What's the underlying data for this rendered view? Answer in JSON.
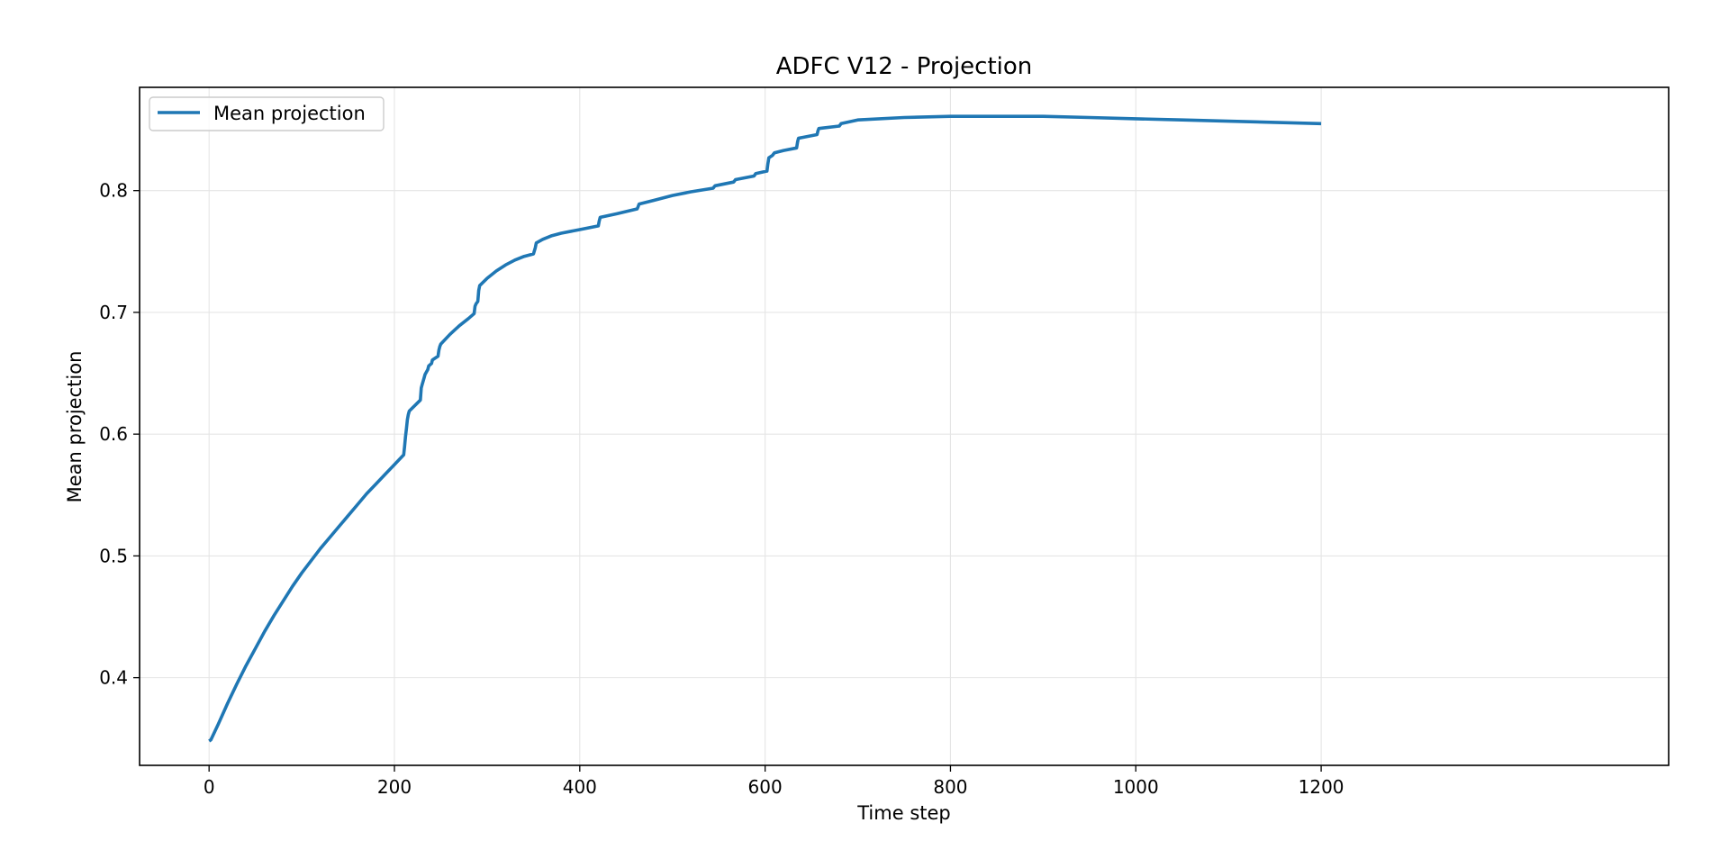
{
  "chart_data": {
    "type": "line",
    "title": "ADFC V12 - Projection",
    "xlabel": "Time step",
    "ylabel": "Mean projection",
    "xlim": [
      -75,
      1575
    ],
    "ylim": [
      0.328,
      0.8848
    ],
    "xticks": [
      0,
      200,
      400,
      600,
      800,
      1000,
      1200
    ],
    "xtick_labels": [
      "0",
      "200",
      "400",
      "600",
      "800",
      "1000",
      "1200"
    ],
    "yticks": [
      0.4,
      0.5,
      0.6,
      0.7,
      0.8
    ],
    "ytick_labels": [
      "0.4",
      "0.5",
      "0.6",
      "0.7",
      "0.8"
    ],
    "grid": true,
    "legend_position": "upper left",
    "series": [
      {
        "name": "Mean projection",
        "color": "#1f77b4",
        "x": [
          0,
          2,
          10,
          20,
          30,
          40,
          50,
          60,
          70,
          80,
          90,
          100,
          110,
          120,
          130,
          140,
          150,
          160,
          170,
          180,
          190,
          200,
          210,
          211,
          212,
          213,
          214,
          215,
          216,
          228,
          229,
          230,
          232,
          233,
          236,
          237,
          240,
          241,
          247,
          248,
          249,
          250,
          260,
          270,
          280,
          286,
          287,
          288,
          290,
          291,
          292,
          300,
          310,
          320,
          330,
          340,
          350,
          352,
          353,
          360,
          370,
          380,
          400,
          420,
          421,
          422,
          440,
          462,
          463,
          464,
          480,
          500,
          520,
          544,
          545,
          546,
          566,
          567,
          568,
          588,
          589,
          590,
          602,
          603,
          604,
          608,
          609,
          610,
          620,
          634,
          635,
          636,
          656,
          657,
          658,
          680,
          681,
          682,
          700,
          750,
          800,
          850,
          900,
          950,
          1000,
          1050,
          1100,
          1150,
          1200
        ],
        "y": [
          0.348,
          0.349,
          0.362,
          0.379,
          0.395,
          0.41,
          0.424,
          0.438,
          0.451,
          0.463,
          0.475,
          0.486,
          0.496,
          0.506,
          0.515,
          0.524,
          0.533,
          0.542,
          0.551,
          0.559,
          0.567,
          0.575,
          0.583,
          0.59,
          0.598,
          0.605,
          0.612,
          0.616,
          0.619,
          0.628,
          0.638,
          0.641,
          0.646,
          0.649,
          0.653,
          0.656,
          0.658,
          0.661,
          0.664,
          0.669,
          0.672,
          0.674,
          0.682,
          0.689,
          0.695,
          0.699,
          0.705,
          0.707,
          0.709,
          0.718,
          0.722,
          0.728,
          0.734,
          0.739,
          0.743,
          0.746,
          0.748,
          0.753,
          0.757,
          0.76,
          0.763,
          0.765,
          0.768,
          0.771,
          0.775,
          0.778,
          0.781,
          0.785,
          0.787,
          0.789,
          0.792,
          0.796,
          0.799,
          0.802,
          0.803,
          0.804,
          0.807,
          0.808,
          0.809,
          0.812,
          0.813,
          0.814,
          0.816,
          0.822,
          0.827,
          0.829,
          0.83,
          0.831,
          0.833,
          0.835,
          0.84,
          0.843,
          0.846,
          0.849,
          0.851,
          0.853,
          0.854,
          0.855,
          0.858,
          0.86,
          0.861,
          0.861,
          0.861,
          0.86,
          0.859,
          0.858,
          0.857,
          0.856,
          0.855
        ]
      }
    ]
  }
}
